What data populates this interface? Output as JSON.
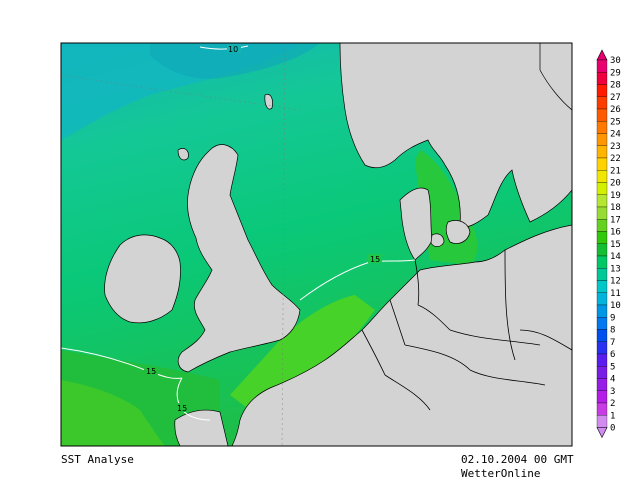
{
  "map": {
    "title": "SST Analyse",
    "timestamp": "02.10.2004 00 GMT",
    "credit": "WetterOnline",
    "contour_labels": [
      "10",
      "15",
      "15",
      "15"
    ],
    "land_color": "#d3d3d3",
    "border_color": "#000000"
  },
  "legend": {
    "unit_values": [
      "30",
      "29",
      "28",
      "27",
      "26",
      "25",
      "24",
      "23",
      "22",
      "21",
      "20",
      "19",
      "18",
      "17",
      "16",
      "15",
      "14",
      "13",
      "12",
      "11",
      "10",
      "9",
      "8",
      "7",
      "6",
      "5",
      "4",
      "3",
      "2",
      "1",
      "0"
    ],
    "colors": [
      "#e8006e",
      "#f0003c",
      "#ff1a00",
      "#ff3c00",
      "#ff5a00",
      "#ff7800",
      "#ff9600",
      "#ffb400",
      "#ffd200",
      "#f0e600",
      "#d2f000",
      "#b4e632",
      "#96dc32",
      "#64d21e",
      "#32c80a",
      "#14be32",
      "#00c864",
      "#00c896",
      "#00c8c8",
      "#00b4dc",
      "#0096e6",
      "#0078f0",
      "#0050f0",
      "#2832f0",
      "#5a1ef0",
      "#781ee6",
      "#961ee6",
      "#b41ee6",
      "#c83ce6",
      "#d28cf0"
    ]
  }
}
